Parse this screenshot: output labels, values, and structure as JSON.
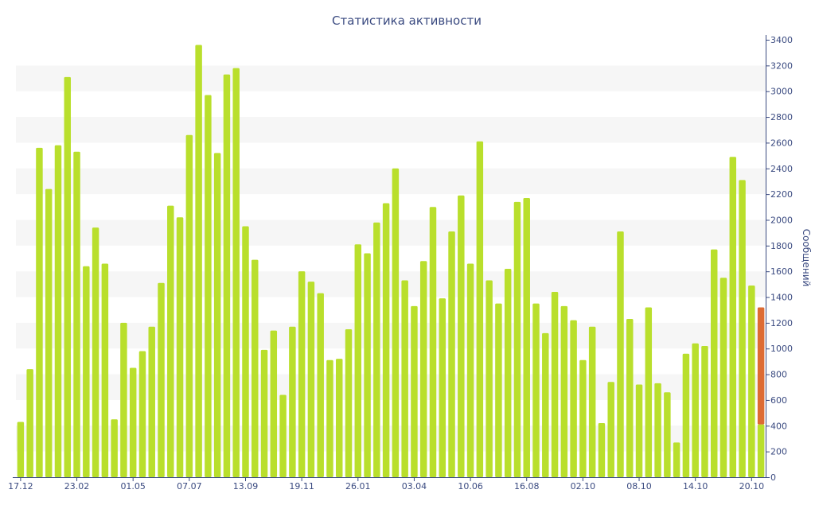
{
  "chart_data": {
    "type": "bar",
    "title": "Статистика активности",
    "ylabel": "Сообщений",
    "xlabel": "",
    "ylim": [
      0,
      3400
    ],
    "yticks": [
      0,
      200,
      400,
      600,
      800,
      1000,
      1200,
      1400,
      1600,
      1800,
      2000,
      2200,
      2400,
      2600,
      2800,
      3000,
      3200,
      3400
    ],
    "y_axis_position": "right",
    "grid": "alternating horizontal bands",
    "x_tick_labels": [
      {
        "label": "17.12",
        "index": 0
      },
      {
        "label": "23.02",
        "index": 6
      },
      {
        "label": "01.05",
        "index": 12
      },
      {
        "label": "07.07",
        "index": 18
      },
      {
        "label": "13.09",
        "index": 24
      },
      {
        "label": "19.11",
        "index": 30
      },
      {
        "label": "26.01",
        "index": 36
      },
      {
        "label": "03.04",
        "index": 42
      },
      {
        "label": "10.06",
        "index": 48
      },
      {
        "label": "16.08",
        "index": 54
      },
      {
        "label": "02.10",
        "index": 60
      },
      {
        "label": "08.10",
        "index": 66
      },
      {
        "label": "14.10",
        "index": 72
      },
      {
        "label": "20.10",
        "index": 78
      }
    ],
    "colors": {
      "primary": "#b9df2c",
      "highlight": "#dd6b33",
      "text": "#3a4a80",
      "band": "#f6f6f6",
      "axis": "#3a4a80"
    },
    "series": [
      {
        "values": [
          430,
          840,
          2560,
          2240,
          2580,
          3110,
          2530,
          1640,
          1940,
          1660,
          450,
          1200,
          850,
          980,
          1170,
          1510,
          2110,
          2020,
          2660,
          3360,
          2970,
          2520,
          3130,
          3180,
          1950,
          1690,
          990,
          1140,
          640,
          1170,
          1600,
          1520,
          1430,
          910,
          920,
          1150,
          1810,
          1740,
          1980,
          2130,
          2400,
          1530,
          1330,
          1680,
          2100,
          1390,
          1910,
          2190,
          1660,
          2610,
          1530,
          1350,
          1620,
          2140,
          2170,
          1350,
          1120,
          1440,
          1330,
          1220,
          910,
          1170,
          420,
          740,
          1910,
          1230,
          720,
          1320,
          730,
          660,
          270,
          960,
          1040,
          1020,
          1770,
          1550,
          2490,
          2310,
          1490,
          410
        ]
      },
      {
        "values": [
          0,
          0,
          0,
          0,
          0,
          0,
          0,
          0,
          0,
          0,
          0,
          0,
          0,
          0,
          0,
          0,
          0,
          0,
          0,
          0,
          0,
          0,
          0,
          0,
          0,
          0,
          0,
          0,
          0,
          0,
          0,
          0,
          0,
          0,
          0,
          0,
          0,
          0,
          0,
          0,
          0,
          0,
          0,
          0,
          0,
          0,
          0,
          0,
          0,
          0,
          0,
          0,
          0,
          0,
          0,
          0,
          0,
          0,
          0,
          0,
          0,
          0,
          0,
          0,
          0,
          0,
          0,
          0,
          0,
          0,
          0,
          0,
          0,
          0,
          0,
          0,
          0,
          0,
          0,
          910
        ]
      }
    ]
  }
}
